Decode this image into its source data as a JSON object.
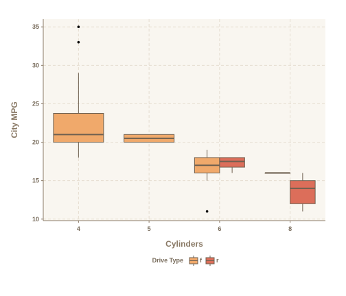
{
  "chart_data": {
    "type": "boxplot",
    "title": "",
    "xlabel": "Cylinders",
    "ylabel": "City MPG",
    "categories": [
      "4",
      "5",
      "6",
      "8"
    ],
    "ylim": [
      9.8,
      36
    ],
    "yticks": [
      10,
      15,
      20,
      25,
      30,
      35
    ],
    "grid": true,
    "legend": {
      "title": "Drive Type",
      "placement": "bottom",
      "entries": [
        {
          "label": "f",
          "color": "#f0a96b"
        },
        {
          "label": "r",
          "color": "#dc6e5a"
        }
      ]
    },
    "series": [
      {
        "name": "f",
        "color": "#f0a96b",
        "boxes": [
          {
            "category": "4",
            "min": 18,
            "q1": 20,
            "median": 21,
            "q3": 23.75,
            "max": 29,
            "outliers": [
              33,
              35
            ]
          },
          {
            "category": "5",
            "min": 20,
            "q1": 20,
            "median": 20.5,
            "q3": 21,
            "max": 21,
            "outliers": []
          },
          {
            "category": "6",
            "min": 15,
            "q1": 16,
            "median": 17,
            "q3": 18,
            "max": 19,
            "outliers": [
              11
            ]
          },
          {
            "category": "8",
            "min": 16,
            "q1": 16,
            "median": 16,
            "q3": 16,
            "max": 16,
            "outliers": []
          }
        ]
      },
      {
        "name": "r",
        "color": "#dc6e5a",
        "boxes": [
          {
            "category": "6",
            "min": 16,
            "q1": 16.75,
            "median": 17.5,
            "q3": 18,
            "max": 18,
            "outliers": []
          },
          {
            "category": "8",
            "min": 11,
            "q1": 12,
            "median": 14,
            "q3": 15,
            "max": 16,
            "outliers": []
          }
        ]
      }
    ],
    "colors": {
      "panel_background": "#f9f6f0",
      "grid": "#e5ddd0",
      "axis_line": "#8a7a66",
      "box_outline": "#6e6050",
      "outlier": "#000000"
    }
  }
}
